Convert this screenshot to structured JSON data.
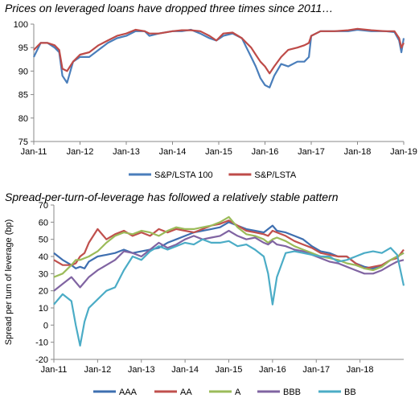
{
  "chart_data": [
    {
      "type": "line",
      "title": "Prices on leveraged loans have dropped three times since 2011…",
      "ylim": [
        75,
        100
      ],
      "yticks": [
        75,
        80,
        85,
        90,
        95,
        100
      ],
      "xticks": [
        "Jan-11",
        "Jan-12",
        "Jan-13",
        "Jan-14",
        "Jan-15",
        "Jan-16",
        "Jan-17",
        "Jan-18",
        "Jan-19"
      ],
      "x": [
        2011.0,
        2011.15,
        2011.3,
        2011.45,
        2011.55,
        2011.62,
        2011.72,
        2011.85,
        2012.0,
        2012.2,
        2012.4,
        2012.6,
        2012.8,
        2013.0,
        2013.2,
        2013.4,
        2013.5,
        2013.7,
        2014.0,
        2014.2,
        2014.4,
        2014.6,
        2014.8,
        2014.95,
        2015.1,
        2015.3,
        2015.5,
        2015.6,
        2015.7,
        2015.8,
        2015.9,
        2016.0,
        2016.1,
        2016.2,
        2016.35,
        2016.5,
        2016.7,
        2016.85,
        2016.95,
        2017.0,
        2017.2,
        2017.5,
        2017.8,
        2018.0,
        2018.3,
        2018.6,
        2018.8,
        2018.9,
        2018.95,
        2019.0
      ],
      "series": [
        {
          "name": "S&P/LSTA 100",
          "color": "#4a7ebb",
          "values": [
            93.0,
            96.0,
            96.0,
            95.0,
            94.0,
            89.0,
            87.5,
            92.0,
            93.0,
            93.0,
            94.5,
            96.0,
            97.0,
            97.5,
            98.5,
            98.5,
            97.5,
            98.0,
            98.5,
            98.5,
            98.8,
            98.0,
            97.0,
            96.5,
            97.5,
            98.0,
            97.0,
            95.0,
            93.0,
            91.0,
            88.5,
            87.0,
            86.5,
            89.0,
            91.5,
            91.0,
            92.0,
            92.0,
            93.0,
            97.5,
            98.5,
            98.5,
            98.5,
            98.8,
            98.5,
            98.5,
            98.3,
            96.5,
            94.0,
            97.0
          ]
        },
        {
          "name": "S&P/LSTA",
          "color": "#be4b48",
          "values": [
            94.5,
            96.0,
            96.0,
            95.5,
            94.5,
            90.5,
            90.0,
            92.0,
            93.5,
            94.0,
            95.5,
            96.5,
            97.5,
            98.0,
            98.8,
            98.5,
            98.0,
            98.0,
            98.5,
            98.7,
            98.7,
            98.5,
            97.5,
            96.5,
            98.0,
            98.2,
            97.0,
            96.0,
            95.0,
            93.5,
            92.0,
            91.0,
            89.5,
            91.0,
            93.0,
            94.5,
            95.0,
            95.5,
            96.0,
            97.5,
            98.5,
            98.5,
            98.7,
            99.0,
            98.7,
            98.5,
            98.5,
            97.0,
            95.0,
            96.0
          ]
        }
      ]
    },
    {
      "type": "line",
      "title": "Spread-per-turn-of-leverage has followed a relatively stable pattern",
      "ylabel": "Spread per turn of leverage (bp)",
      "ylim": [
        -20,
        70
      ],
      "yticks": [
        -20,
        -10,
        0,
        10,
        20,
        30,
        40,
        50,
        60,
        70
      ],
      "xticks": [
        "Jan-11",
        "Jan-12",
        "Jan-13",
        "Jan-14",
        "Jan-15",
        "Jan-16",
        "Jan-17",
        "Jan-18"
      ],
      "x": [
        2011.0,
        2011.2,
        2011.4,
        2011.5,
        2011.6,
        2011.7,
        2011.8,
        2012.0,
        2012.2,
        2012.4,
        2012.6,
        2012.8,
        2013.0,
        2013.2,
        2013.4,
        2013.6,
        2013.8,
        2014.0,
        2014.2,
        2014.4,
        2014.6,
        2014.8,
        2015.0,
        2015.2,
        2015.4,
        2015.6,
        2015.8,
        2015.9,
        2016.0,
        2016.1,
        2016.3,
        2016.5,
        2016.7,
        2016.9,
        2017.1,
        2017.3,
        2017.5,
        2017.7,
        2017.9,
        2018.1,
        2018.3,
        2018.5,
        2018.7,
        2018.85,
        2019.0
      ],
      "series": [
        {
          "name": "AAA",
          "color": "#3e6fb0",
          "values": [
            42,
            38,
            35,
            33,
            34,
            33,
            37,
            40,
            41,
            42,
            44,
            42,
            43,
            44,
            45,
            48,
            50,
            52,
            54,
            55,
            56,
            57,
            60,
            58,
            56,
            55,
            54,
            56,
            58,
            55,
            54,
            52,
            50,
            46,
            43,
            42,
            40,
            40,
            36,
            34,
            33,
            35,
            38,
            40,
            42
          ]
        },
        {
          "name": "AA",
          "color": "#c0504d",
          "values": [
            38,
            35,
            35,
            36,
            40,
            42,
            48,
            56,
            50,
            53,
            55,
            52,
            54,
            52,
            56,
            54,
            56,
            55,
            54,
            56,
            58,
            59,
            61,
            58,
            55,
            54,
            53,
            52,
            55,
            54,
            52,
            49,
            47,
            45,
            42,
            41,
            40,
            40,
            36,
            33,
            34,
            35,
            38,
            39,
            44
          ]
        },
        {
          "name": "A",
          "color": "#9bbb59",
          "values": [
            28,
            30,
            35,
            38,
            38,
            39,
            40,
            43,
            48,
            52,
            54,
            53,
            55,
            54,
            52,
            55,
            57,
            56,
            56,
            57,
            58,
            60,
            63,
            57,
            53,
            52,
            50,
            48,
            50,
            51,
            49,
            46,
            44,
            42,
            40,
            39,
            38,
            36,
            35,
            33,
            32,
            34,
            38,
            40,
            42
          ]
        },
        {
          "name": "BBB",
          "color": "#8064a2",
          "values": [
            20,
            24,
            28,
            25,
            22,
            25,
            28,
            32,
            35,
            38,
            43,
            42,
            40,
            44,
            48,
            45,
            47,
            50,
            52,
            50,
            51,
            52,
            55,
            52,
            50,
            51,
            48,
            47,
            49,
            47,
            46,
            44,
            43,
            41,
            39,
            37,
            36,
            34,
            32,
            30,
            30,
            32,
            35,
            37,
            38
          ]
        },
        {
          "name": "BB",
          "color": "#4bacc6",
          "values": [
            12,
            18,
            14,
            0,
            -12,
            2,
            10,
            15,
            20,
            22,
            32,
            40,
            38,
            43,
            46,
            44,
            46,
            48,
            47,
            50,
            48,
            48,
            49,
            46,
            47,
            44,
            40,
            30,
            12,
            28,
            42,
            43,
            42,
            41,
            40,
            40,
            37,
            38,
            40,
            42,
            43,
            42,
            45,
            41,
            23
          ]
        }
      ]
    }
  ]
}
